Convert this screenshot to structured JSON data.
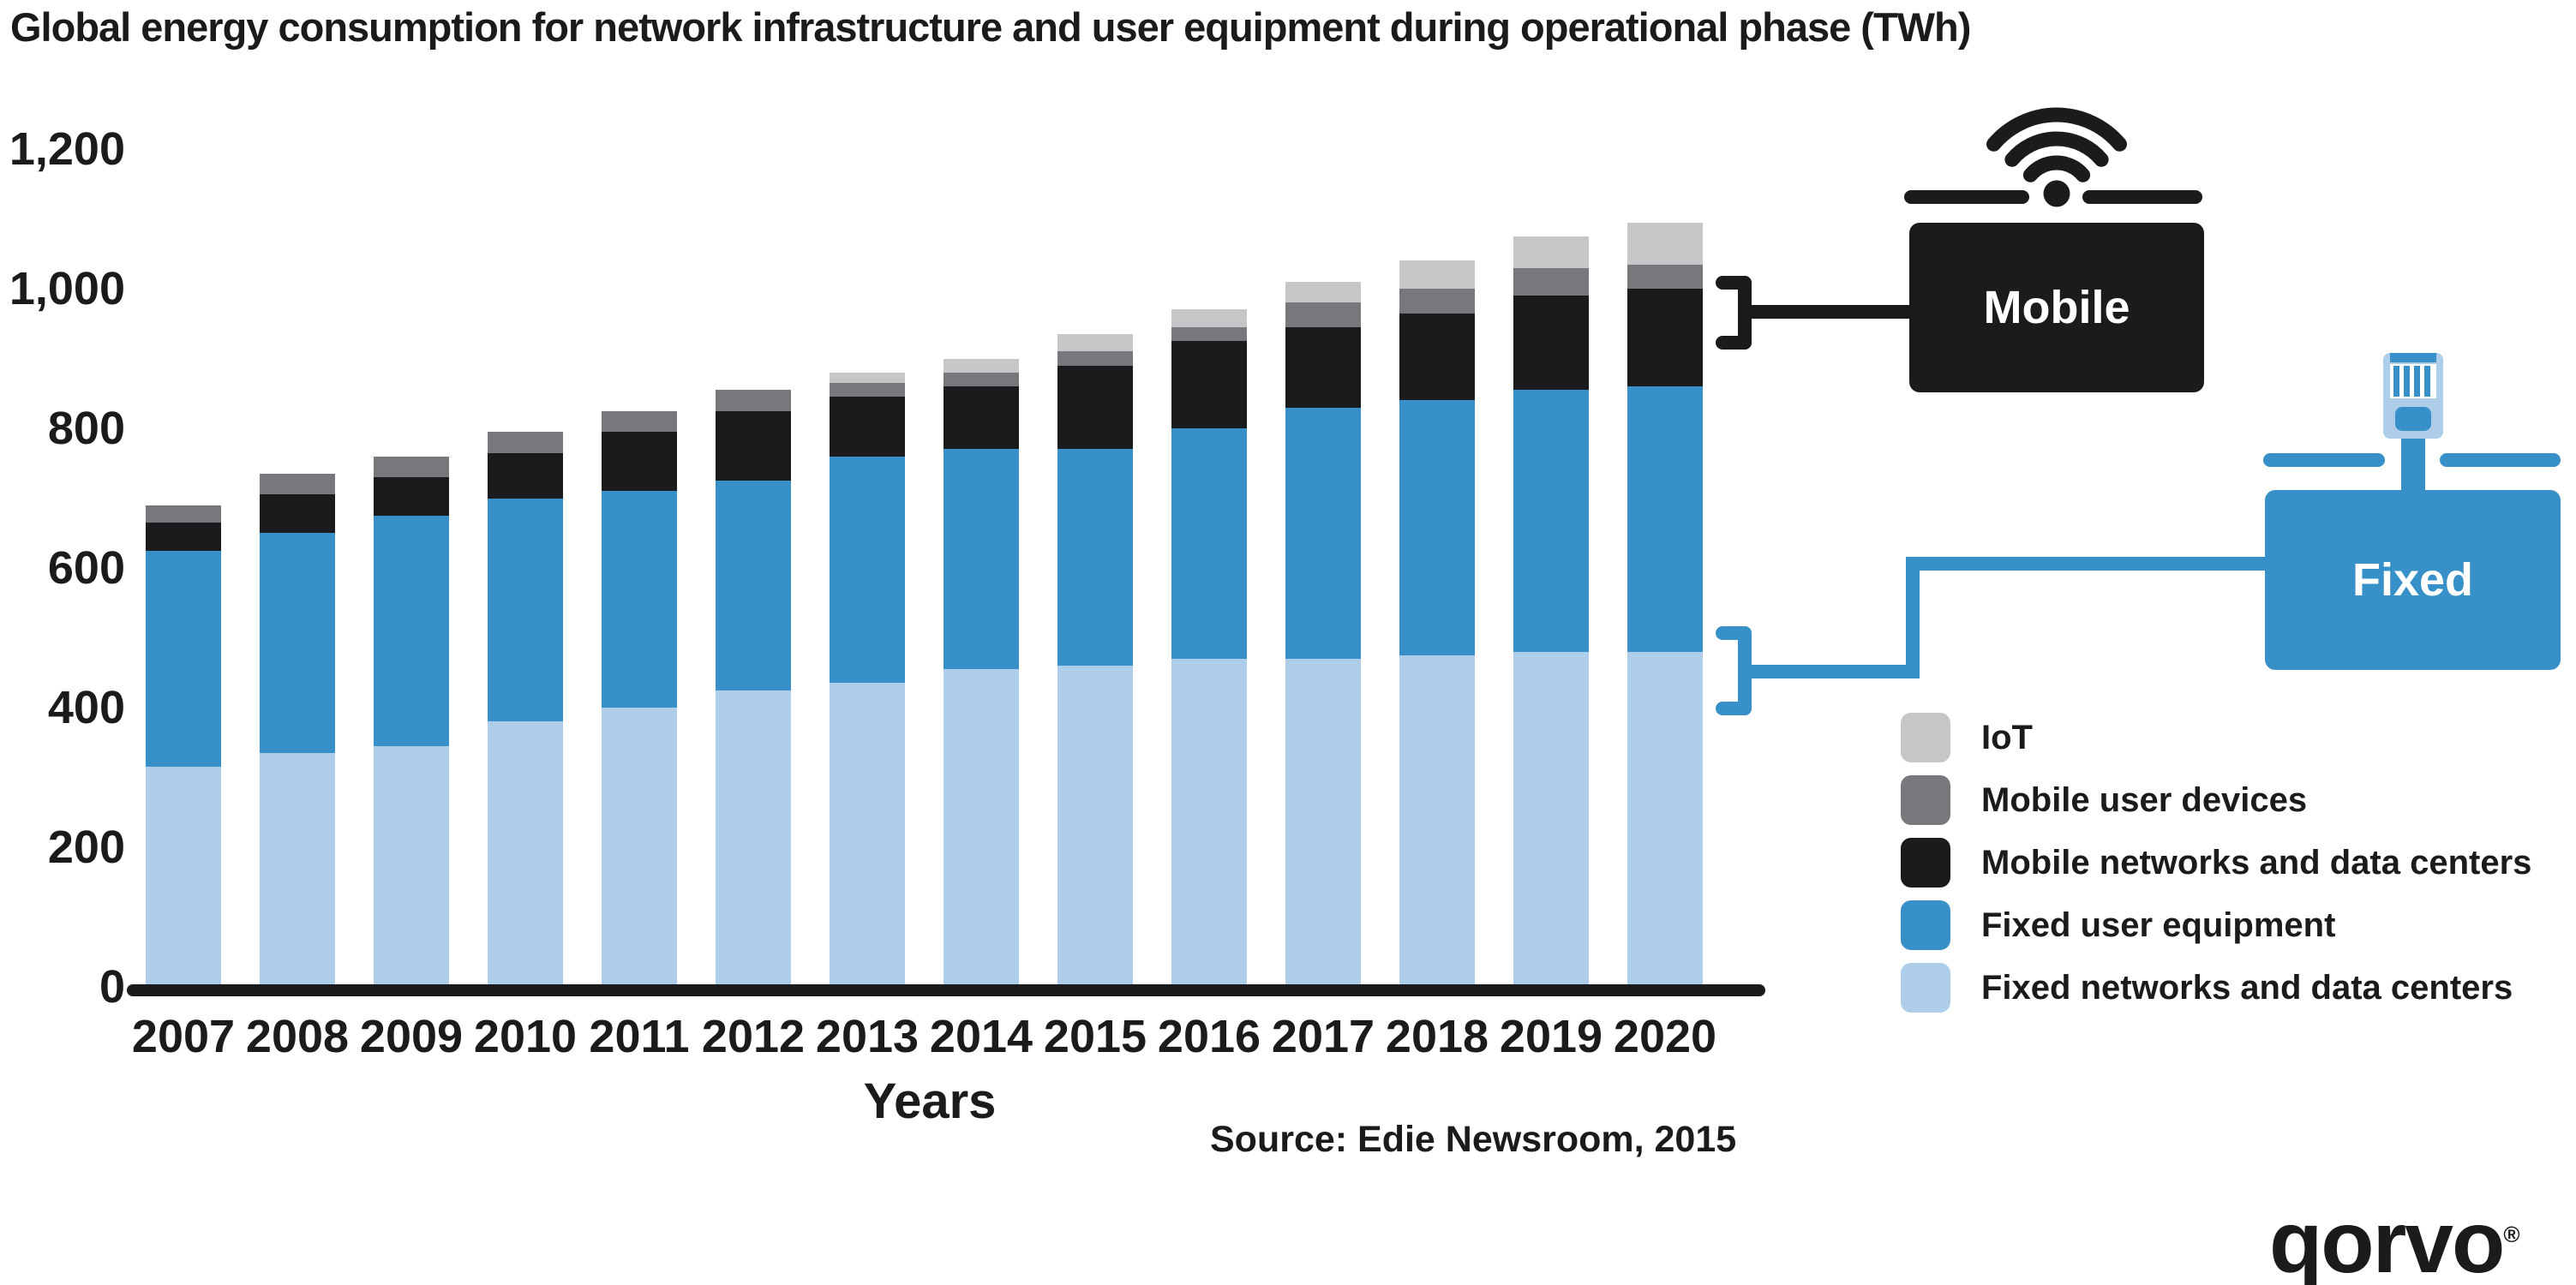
{
  "title": "Global energy consumption for network infrastructure and user equipment during operational phase (TWh)",
  "source": "Source: Edie Newsroom, 2015",
  "logo": {
    "text": "qorvo",
    "registered": "®"
  },
  "callouts": {
    "mobile": {
      "label": "Mobile",
      "icon": "wifi-icon",
      "color": "#1B1B1D"
    },
    "fixed": {
      "label": "Fixed",
      "icon": "ethernet-plug-icon",
      "color": "#3791C8"
    }
  },
  "y_axis": {
    "ticks": [
      {
        "value": 0,
        "label": "0"
      },
      {
        "value": 200,
        "label": "200"
      },
      {
        "value": 400,
        "label": "400"
      },
      {
        "value": 600,
        "label": "600"
      },
      {
        "value": 800,
        "label": "800"
      },
      {
        "value": 1000,
        "label": "1,000"
      },
      {
        "value": 1200,
        "label": "1,200"
      }
    ]
  },
  "legend": {
    "items": [
      {
        "label": "IoT",
        "color": "#C5C6C8"
      },
      {
        "label": "Mobile user devices",
        "color": "#77787B"
      },
      {
        "label": "Mobile networks and data centers",
        "color": "#1B1B1D"
      },
      {
        "label": "Fixed user equipment",
        "color": "#3791C8"
      },
      {
        "label": "Fixed networks and data centers",
        "color": "#AECDE9"
      }
    ]
  },
  "chart_data": {
    "type": "bar",
    "stacked": true,
    "title": "Global energy consumption for network infrastructure and user equipment during operational phase (TWh)",
    "xlabel": "Years",
    "ylabel": "",
    "ylim": [
      0,
      1200
    ],
    "grid": false,
    "legend_position": "right",
    "categories": [
      "2007",
      "2008",
      "2009",
      "2010",
      "2011",
      "2012",
      "2013",
      "2014",
      "2015",
      "2016",
      "2017",
      "2018",
      "2019",
      "2020"
    ],
    "series": [
      {
        "name": "Fixed networks and data centers",
        "color": "#AECDE9",
        "values": [
          315,
          335,
          345,
          380,
          400,
          425,
          435,
          455,
          460,
          470,
          470,
          475,
          480,
          480
        ]
      },
      {
        "name": "Fixed user equipment",
        "color": "#3791C8",
        "values": [
          310,
          315,
          330,
          320,
          310,
          300,
          325,
          315,
          310,
          330,
          360,
          365,
          375,
          380
        ]
      },
      {
        "name": "Mobile networks and data centers",
        "color": "#1B1B1D",
        "values": [
          40,
          55,
          55,
          65,
          85,
          100,
          85,
          90,
          120,
          125,
          115,
          125,
          135,
          140
        ]
      },
      {
        "name": "Mobile user devices",
        "color": "#77787B",
        "values": [
          25,
          30,
          30,
          30,
          30,
          30,
          20,
          20,
          20,
          20,
          35,
          35,
          40,
          35
        ]
      },
      {
        "name": "IoT",
        "color": "#C5C6C8",
        "values": [
          0,
          0,
          0,
          0,
          0,
          0,
          15,
          20,
          25,
          25,
          30,
          40,
          45,
          60
        ]
      }
    ],
    "totals": [
      690,
      735,
      760,
      795,
      825,
      855,
      880,
      900,
      935,
      970,
      1010,
      1040,
      1075,
      1095
    ]
  }
}
